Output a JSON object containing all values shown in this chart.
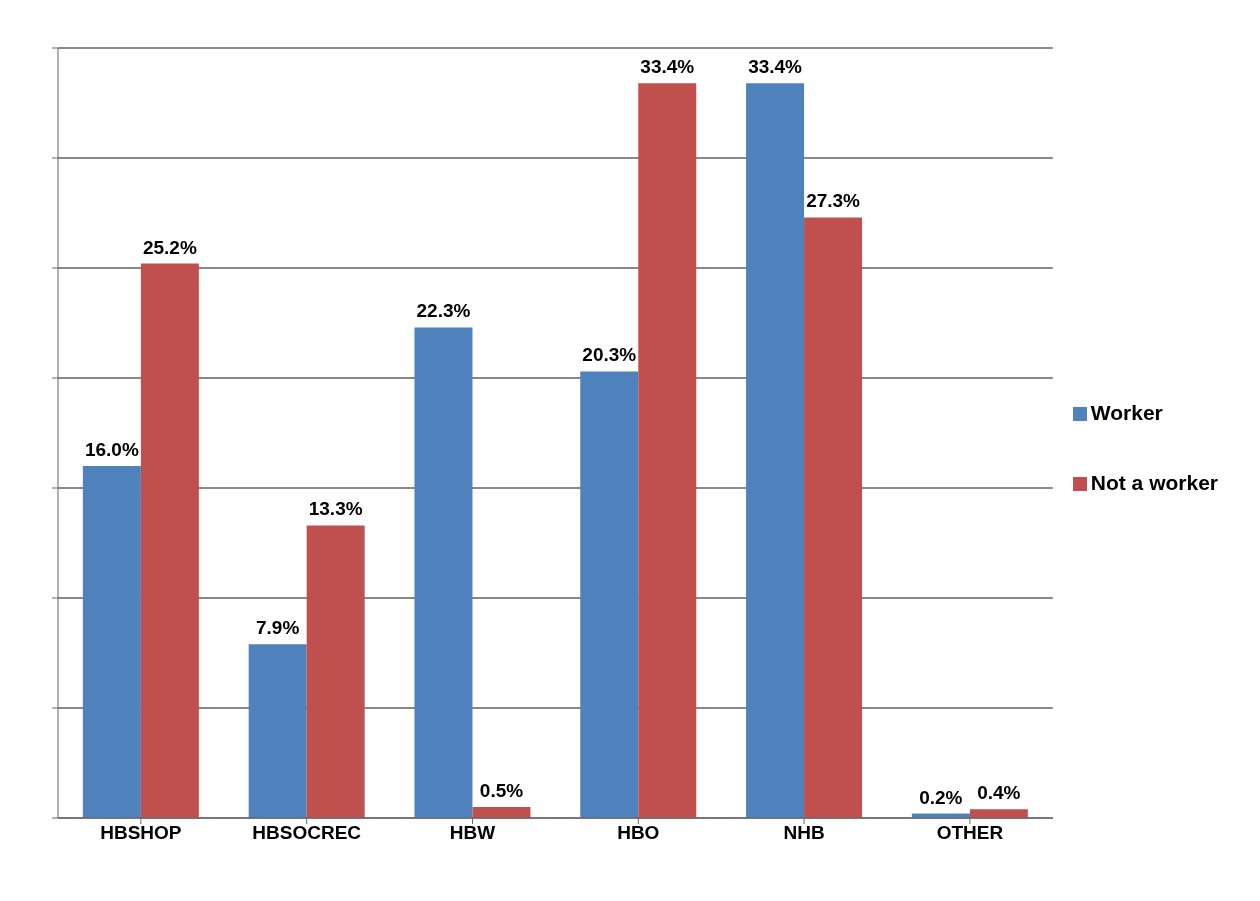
{
  "chart_data": {
    "type": "bar",
    "categories": [
      "HBSHOP",
      "HBSOCREC",
      "HBW",
      "HBO",
      "NHB",
      "OTHER"
    ],
    "series": [
      {
        "name": "Worker",
        "color": "#4f81bd",
        "values": [
          16.0,
          7.9,
          22.3,
          20.3,
          33.4,
          0.2
        ],
        "value_labels": [
          "16.0%",
          "7.9%",
          "22.3%",
          "20.3%",
          "33.4%",
          "0.2%"
        ]
      },
      {
        "name": "Not a worker",
        "color": "#c0504d",
        "values": [
          25.2,
          13.3,
          0.5,
          33.4,
          27.3,
          0.4
        ],
        "value_labels": [
          "25.2%",
          "13.3%",
          "0.5%",
          "33.4%",
          "27.3%",
          "0.4%"
        ]
      }
    ],
    "grid": "y",
    "tick_labels": "x",
    "legend": "right"
  }
}
